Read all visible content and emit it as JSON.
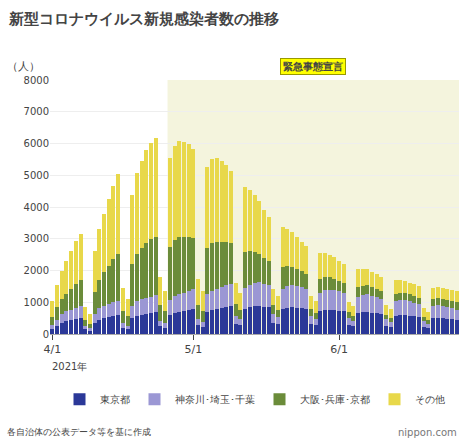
{
  "chart_data": {
    "type": "bar",
    "stacked": true,
    "title": "新型コロナウイルス新規感染者数の推移",
    "ylabel": "（人）",
    "source": "各自治体の公表データ等を基に作成",
    "annotations": [
      "2021年",
      "nippon.com"
    ],
    "emergency": {
      "label": "緊急事態宣言",
      "start": 24.5,
      "end": 86.5
    },
    "legend": "bottom",
    "grid": true,
    "ylim": [
      0,
      8000
    ],
    "yticks": [
      0,
      1000,
      2000,
      3000,
      4000,
      5000,
      6000,
      7000,
      8000
    ],
    "categories": [
      "4/1",
      null,
      null,
      null,
      null,
      null,
      null,
      null,
      null,
      null,
      null,
      null,
      null,
      null,
      null,
      null,
      null,
      null,
      null,
      null,
      null,
      null,
      null,
      null,
      null,
      null,
      null,
      null,
      null,
      null,
      "5/1",
      null,
      null,
      null,
      null,
      null,
      null,
      null,
      null,
      null,
      null,
      null,
      null,
      null,
      null,
      null,
      null,
      null,
      null,
      null,
      null,
      null,
      null,
      null,
      null,
      null,
      null,
      null,
      null,
      null,
      null,
      "6/1",
      null,
      null,
      null,
      null,
      null,
      null,
      null,
      null,
      null,
      null,
      null,
      null,
      null,
      null,
      null,
      null,
      null,
      null,
      null,
      null,
      null,
      null,
      null,
      null,
      null
    ],
    "series": [
      {
        "name": "東京都",
        "color": "#2b3898",
        "values": [
          150,
          250,
          350,
          400,
          430,
          460,
          500,
          150,
          100,
          350,
          450,
          500,
          530,
          560,
          590,
          200,
          150,
          500,
          580,
          610,
          640,
          660,
          680,
          250,
          200,
          600,
          670,
          700,
          720,
          750,
          780,
          270,
          220,
          700,
          760,
          790,
          810,
          840,
          870,
          320,
          270,
          800,
          850,
          880,
          890,
          860,
          840,
          350,
          300,
          780,
          820,
          840,
          830,
          810,
          790,
          320,
          270,
          720,
          760,
          770,
          760,
          740,
          710,
          290,
          240,
          650,
          680,
          690,
          670,
          650,
          620,
          260,
          210,
          580,
          600,
          600,
          580,
          560,
          530,
          230,
          180,
          500,
          510,
          500,
          480,
          460,
          440
        ]
      },
      {
        "name": "神奈川･埼玉･千葉",
        "color": "#9b97d4",
        "values": [
          120,
          200,
          270,
          310,
          340,
          360,
          380,
          100,
          80,
          280,
          360,
          390,
          420,
          440,
          460,
          140,
          110,
          390,
          450,
          480,
          500,
          520,
          540,
          170,
          140,
          480,
          530,
          560,
          580,
          600,
          630,
          200,
          160,
          560,
          610,
          640,
          660,
          690,
          720,
          240,
          190,
          650,
          700,
          730,
          740,
          720,
          700,
          270,
          220,
          640,
          680,
          690,
          680,
          660,
          640,
          250,
          200,
          580,
          620,
          630,
          620,
          600,
          570,
          220,
          180,
          520,
          550,
          560,
          540,
          520,
          490,
          200,
          160,
          450,
          470,
          470,
          450,
          430,
          410,
          170,
          130,
          390,
          400,
          390,
          370,
          350,
          330
        ]
      },
      {
        "name": "大阪･兵庫･京都",
        "color": "#6b8c3a",
        "values": [
          280,
          400,
          480,
          550,
          650,
          750,
          820,
          200,
          150,
          700,
          900,
          1050,
          1200,
          1350,
          1480,
          400,
          300,
          1300,
          1500,
          1620,
          1720,
          1800,
          1850,
          500,
          380,
          1650,
          1750,
          1780,
          1750,
          1700,
          1620,
          450,
          350,
          1450,
          1500,
          1480,
          1430,
          1360,
          1270,
          380,
          300,
          1120,
          1060,
          980,
          900,
          820,
          750,
          280,
          240,
          680,
          630,
          580,
          540,
          500,
          470,
          220,
          190,
          440,
          410,
          380,
          360,
          340,
          320,
          170,
          150,
          310,
          290,
          280,
          265,
          255,
          245,
          150,
          135,
          235,
          225,
          220,
          215,
          210,
          208,
          135,
          125,
          210,
          215,
          218,
          220,
          225,
          230
        ]
      },
      {
        "name": "その他",
        "color": "#e8d84a",
        "values": [
          500,
          700,
          900,
          1050,
          1200,
          1350,
          1450,
          400,
          300,
          1300,
          1600,
          1850,
          2100,
          2300,
          2500,
          700,
          530,
          2200,
          2550,
          2750,
          2950,
          3050,
          3100,
          870,
          650,
          2800,
          2980,
          3050,
          3000,
          2920,
          2800,
          800,
          620,
          2550,
          2650,
          2620,
          2540,
          2430,
          2280,
          680,
          530,
          2050,
          1940,
          1800,
          1660,
          1520,
          1400,
          530,
          450,
          1280,
          1180,
          1090,
          1010,
          940,
          880,
          420,
          370,
          820,
          760,
          710,
          670,
          630,
          600,
          340,
          310,
          570,
          535,
          510,
          485,
          465,
          445,
          295,
          275,
          425,
          405,
          390,
          375,
          360,
          350,
          270,
          255,
          340,
          345,
          350,
          355,
          362,
          370
        ]
      }
    ]
  }
}
